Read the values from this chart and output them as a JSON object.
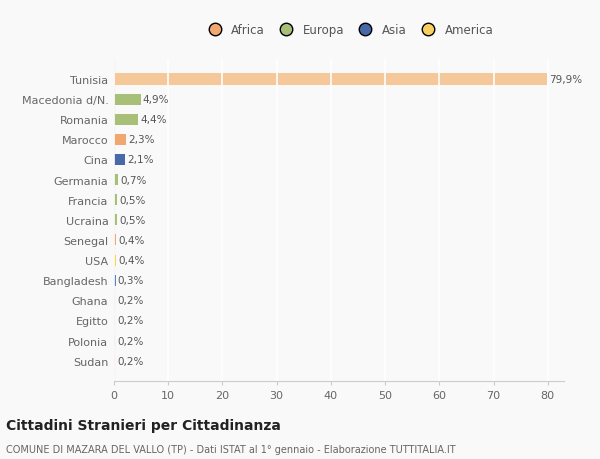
{
  "categories": [
    "Sudan",
    "Polonia",
    "Egitto",
    "Ghana",
    "Bangladesh",
    "USA",
    "Senegal",
    "Ucraina",
    "Francia",
    "Germania",
    "Cina",
    "Marocco",
    "Romania",
    "Macedonia d/N.",
    "Tunisia"
  ],
  "values": [
    0.2,
    0.2,
    0.2,
    0.2,
    0.3,
    0.4,
    0.4,
    0.5,
    0.5,
    0.7,
    2.1,
    2.3,
    4.4,
    4.9,
    79.9
  ],
  "labels": [
    "0,2%",
    "0,2%",
    "0,2%",
    "0,2%",
    "0,3%",
    "0,4%",
    "0,4%",
    "0,5%",
    "0,5%",
    "0,7%",
    "2,1%",
    "2,3%",
    "4,4%",
    "4,9%",
    "79,9%"
  ],
  "colors": [
    "#f0a870",
    "#a8bf78",
    "#f0a870",
    "#f0a870",
    "#6080b8",
    "#f8d060",
    "#f0a870",
    "#a8bf78",
    "#a8bf78",
    "#a8bf78",
    "#4868a8",
    "#f0a870",
    "#a8bf78",
    "#a8bf78",
    "#f5c89a"
  ],
  "legend_labels": [
    "Africa",
    "Europa",
    "Asia",
    "America"
  ],
  "legend_colors": [
    "#f0a870",
    "#a8bf78",
    "#4868a8",
    "#f8d060"
  ],
  "title": "Cittadini Stranieri per Cittadinanza",
  "subtitle": "COMUNE DI MAZARA DEL VALLO (TP) - Dati ISTAT al 1° gennaio - Elaborazione TUTTITALIA.IT",
  "xlim": [
    0,
    83
  ],
  "xticks": [
    0,
    10,
    20,
    30,
    40,
    50,
    60,
    70,
    80
  ],
  "background_color": "#f9f9f9",
  "grid_color": "#ffffff",
  "bar_height": 0.55
}
